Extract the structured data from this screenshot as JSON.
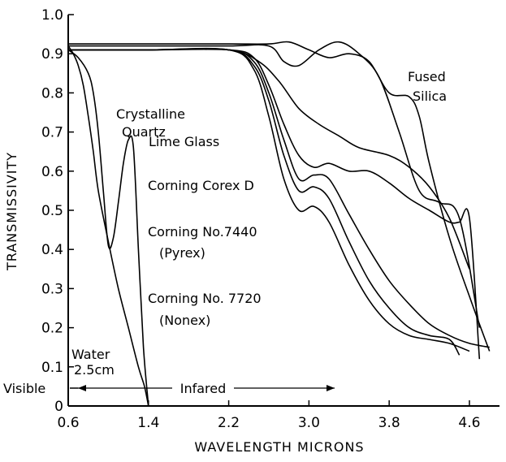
{
  "chart_data": {
    "type": "line",
    "title": "",
    "xlabel": "WAVELENGTH MICRONS",
    "ylabel": "TRANSMISSIVITY",
    "xlim": [
      0.6,
      4.9
    ],
    "ylim": [
      0,
      1.0
    ],
    "x_ticks": [
      "0.6",
      "1.4",
      "2.2",
      "3.0",
      "3.8",
      "4.6"
    ],
    "y_ticks": [
      "0",
      "0.1",
      "0.2",
      "0.3",
      "0.4",
      "0.5",
      "0.6",
      "0.7",
      "0.8",
      "0.9",
      "1.0"
    ],
    "grid": false,
    "series": [
      {
        "name": "Water 2.5cm",
        "x": [
          0.6,
          0.65,
          0.7,
          0.75,
          0.8,
          0.85,
          0.9,
          1.0,
          1.1,
          1.2,
          1.3,
          1.36,
          1.4
        ],
        "y": [
          0.92,
          0.9,
          0.87,
          0.82,
          0.74,
          0.65,
          0.55,
          0.42,
          0.3,
          0.2,
          0.1,
          0.05,
          0.0
        ]
      },
      {
        "name": "Crystalline Quartz",
        "x": [
          0.6,
          0.7,
          0.8,
          0.85,
          0.9,
          0.95,
          1.0,
          1.05,
          1.1,
          1.15,
          1.2,
          1.25,
          1.3,
          1.35,
          1.4
        ],
        "y": [
          0.91,
          0.89,
          0.85,
          0.8,
          0.7,
          0.55,
          0.41,
          0.43,
          0.52,
          0.62,
          0.68,
          0.66,
          0.4,
          0.15,
          0.0
        ]
      },
      {
        "name": "Fused Silica",
        "x": [
          0.6,
          1.4,
          2.2,
          2.6,
          2.8,
          3.0,
          3.2,
          3.4,
          3.6,
          3.8,
          4.0,
          4.1,
          4.2,
          4.4,
          4.6,
          4.8
        ],
        "y": [
          0.925,
          0.925,
          0.925,
          0.925,
          0.93,
          0.91,
          0.89,
          0.9,
          0.88,
          0.8,
          0.79,
          0.74,
          0.62,
          0.43,
          0.28,
          0.14
        ]
      },
      {
        "name": "Fused Silica (2)",
        "x": [
          0.6,
          1.4,
          2.2,
          2.6,
          2.75,
          2.9,
          3.1,
          3.3,
          3.5,
          3.7,
          3.9,
          4.1,
          4.3,
          4.5,
          4.7
        ],
        "y": [
          0.92,
          0.92,
          0.92,
          0.92,
          0.88,
          0.87,
          0.91,
          0.93,
          0.9,
          0.84,
          0.7,
          0.55,
          0.52,
          0.48,
          0.2
        ]
      },
      {
        "name": "Lime Glass",
        "x": [
          0.6,
          1.4,
          2.2,
          2.5,
          2.7,
          2.9,
          3.1,
          3.3,
          3.5,
          3.8,
          4.0,
          4.2,
          4.4,
          4.6
        ],
        "y": [
          0.91,
          0.91,
          0.91,
          0.88,
          0.83,
          0.76,
          0.72,
          0.69,
          0.66,
          0.64,
          0.61,
          0.56,
          0.48,
          0.35
        ]
      },
      {
        "name": "Corning Corex D",
        "x": [
          0.6,
          1.4,
          2.2,
          2.45,
          2.6,
          2.75,
          2.9,
          3.05,
          3.2,
          3.4,
          3.6,
          3.8,
          4.0,
          4.2,
          4.4,
          4.5,
          4.6,
          4.7
        ],
        "y": [
          0.91,
          0.91,
          0.91,
          0.89,
          0.82,
          0.72,
          0.64,
          0.61,
          0.62,
          0.6,
          0.6,
          0.57,
          0.53,
          0.5,
          0.47,
          0.47,
          0.48,
          0.12
        ]
      },
      {
        "name": "Corning No. 7440 (Pyrex)",
        "x": [
          0.6,
          1.4,
          2.2,
          2.45,
          2.6,
          2.75,
          2.9,
          3.05,
          3.2,
          3.4,
          3.6,
          3.8,
          4.0,
          4.2,
          4.4,
          4.6,
          4.8
        ],
        "y": [
          0.91,
          0.91,
          0.91,
          0.88,
          0.8,
          0.68,
          0.58,
          0.59,
          0.58,
          0.49,
          0.4,
          0.32,
          0.26,
          0.21,
          0.18,
          0.16,
          0.15
        ]
      },
      {
        "name": "Corning No. 7720 (Nonex)",
        "x": [
          0.6,
          1.4,
          2.2,
          2.45,
          2.6,
          2.75,
          2.9,
          3.05,
          3.2,
          3.4,
          3.6,
          3.8,
          4.0,
          4.2,
          4.4,
          4.5
        ],
        "y": [
          0.91,
          0.91,
          0.91,
          0.87,
          0.78,
          0.64,
          0.55,
          0.56,
          0.53,
          0.42,
          0.32,
          0.25,
          0.2,
          0.18,
          0.17,
          0.13
        ]
      },
      {
        "name": "Corning No. 7720 (Nonex) (2)",
        "x": [
          0.6,
          1.4,
          2.2,
          2.45,
          2.6,
          2.75,
          2.9,
          3.05,
          3.2,
          3.4,
          3.6,
          3.8,
          4.0,
          4.2,
          4.4,
          4.6
        ],
        "y": [
          0.91,
          0.91,
          0.91,
          0.86,
          0.74,
          0.58,
          0.5,
          0.51,
          0.47,
          0.36,
          0.27,
          0.21,
          0.18,
          0.17,
          0.16,
          0.14
        ]
      }
    ],
    "annotations": [
      {
        "id": "crystalline",
        "lines": [
          "Crystalline",
          "Quartz"
        ]
      },
      {
        "id": "lime",
        "lines": [
          "Lime Glass"
        ]
      },
      {
        "id": "corex",
        "lines": [
          "Corning Corex D"
        ]
      },
      {
        "id": "pyrex",
        "lines": [
          "Corning No.7440",
          "(Pyrex)"
        ]
      },
      {
        "id": "nonex",
        "lines": [
          "Corning No. 7720",
          "(Nonex)"
        ]
      },
      {
        "id": "fused",
        "lines": [
          "Fused",
          "Silica"
        ]
      },
      {
        "id": "water",
        "lines": [
          "Water",
          "2.5cm"
        ]
      }
    ],
    "bands": {
      "visible": "Visible",
      "infrared": "Infared"
    }
  }
}
